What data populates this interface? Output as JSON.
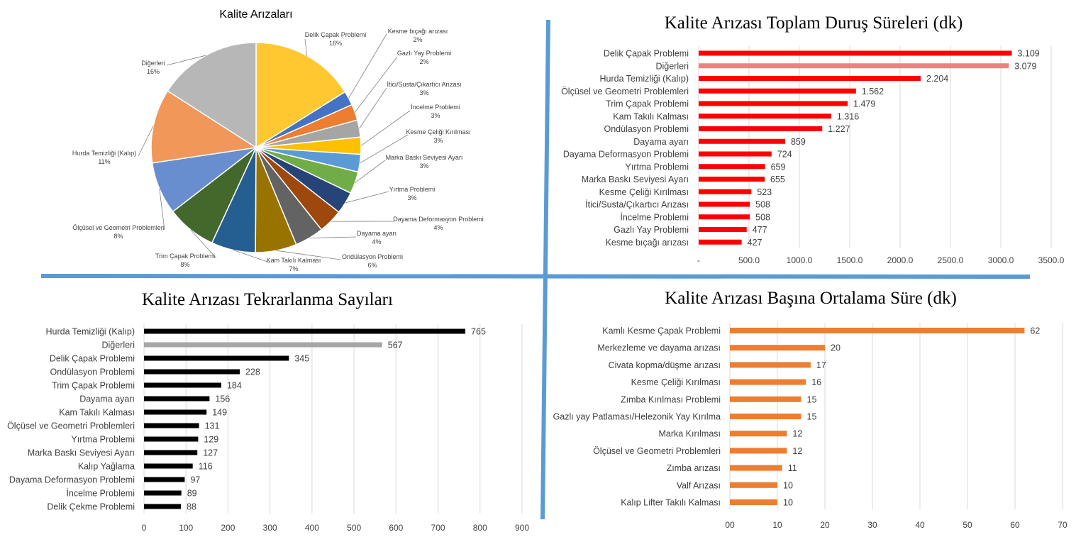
{
  "chart_data": [
    {
      "type": "pie",
      "title": "Kalite Arızaları",
      "categories": [
        "Delik Çapak Problemi",
        "Kesme bıçağı arızası",
        "Gazlı Yay Problemi",
        "İtici/Susta/Çıkartıcı Arızası",
        "İncelme Problemi",
        "Kesme Çeliği Kırılması",
        "Marka Baskı Seviyesi Ayarı",
        "Yırtma Problemi",
        "Dayama Deformasyon Problemi",
        "Dayama ayarı",
        "Ondülasyon Problemi",
        "Kam Takılı Kalması",
        "Trim Çapak Problemi",
        "Ölçüsel ve Geometri Problemleri",
        "Hurda Temizliği (Kalıp)",
        "Diğerleri"
      ],
      "percent_labels": [
        "16%",
        "2%",
        "2%",
        "3%",
        "3%",
        "3%",
        "3%",
        "3%",
        "4%",
        "4%",
        "6%",
        "7%",
        "8%",
        "8%",
        "11%",
        "16%"
      ],
      "values": [
        3109,
        427,
        477,
        508,
        508,
        523,
        655,
        659,
        724,
        859,
        1227,
        1316,
        1479,
        1562,
        2204,
        3079
      ],
      "colors": [
        "#ffc830",
        "#4472c4",
        "#ed7d31",
        "#a5a5a5",
        "#ffc000",
        "#5b9bd5",
        "#70ad47",
        "#264478",
        "#9e480e",
        "#636363",
        "#997300",
        "#255e91",
        "#43682b",
        "#698ed0",
        "#f1975a",
        "#b7b7b7"
      ]
    },
    {
      "type": "bar",
      "orientation": "horizontal",
      "title": "Kalite Arızası Toplam Duruş Süreleri (dk)",
      "categories": [
        "Delik Çapak Problemi",
        "Diğerleri",
        "Hurda Temizliği (Kalıp)",
        "Ölçüsel ve Geometri Problemleri",
        "Trim Çapak Problemi",
        "Kam Takılı Kalması",
        "Ondülasyon Problemi",
        "Dayama ayarı",
        "Dayama Deformasyon Problemi",
        "Yırtma Problemi",
        "Marka Baskı Seviyesi Ayarı",
        "Kesme Çeliği Kırılması",
        "İtici/Susta/Çıkartıcı Arızası",
        "İncelme Problemi",
        "Gazlı Yay Problemi",
        "Kesme bıçağı arızası"
      ],
      "values": [
        3109,
        3079,
        2204,
        1562,
        1479,
        1316,
        1227,
        859,
        724,
        659,
        655,
        523,
        508,
        508,
        477,
        427
      ],
      "value_labels": [
        "3.109",
        "3.079",
        "2.204",
        "1.562",
        "1.479",
        "1.316",
        "1.227",
        "859",
        "724",
        "659",
        "655",
        "523",
        "508",
        "508",
        "477",
        "427"
      ],
      "xlim": [
        0,
        3500
      ],
      "xticks": [
        "-",
        "500.0",
        "1000.0",
        "1500.0",
        "2000.0",
        "2500.0",
        "3000.0",
        "3500.0"
      ],
      "bar_color": "#ff0000",
      "highlight": {
        "index": 1,
        "color": "#f08080"
      }
    },
    {
      "type": "bar",
      "orientation": "horizontal",
      "title": "Kalite Arızası Tekrarlanma Sayıları",
      "categories": [
        "Hurda Temizliği (Kalıp)",
        "Diğerleri",
        "Delik Çapak Problemi",
        "Ondülasyon Problemi",
        "Trim Çapak Problemi",
        "Dayama ayarı",
        "Kam Takılı Kalması",
        "Ölçüsel ve Geometri Problemleri",
        "Yırtma Problemi",
        "Marka Baskı Seviyesi Ayarı",
        "Kalıp Yağlama",
        "Dayama Deformasyon Problemi",
        "İncelme Problemi",
        "Delik Çekme Problemi"
      ],
      "values": [
        765,
        567,
        345,
        228,
        184,
        156,
        149,
        131,
        129,
        127,
        116,
        97,
        89,
        88
      ],
      "value_labels": [
        "765",
        "567",
        "345",
        "228",
        "184",
        "156",
        "149",
        "131",
        "129",
        "127",
        "116",
        "97",
        "89",
        "88"
      ],
      "xlim": [
        0,
        900
      ],
      "xticks": [
        "0",
        "100",
        "200",
        "300",
        "400",
        "500",
        "600",
        "700",
        "800",
        "900"
      ],
      "bar_color": "#000000",
      "highlight": {
        "index": 1,
        "color": "#a6a6a6"
      }
    },
    {
      "type": "bar",
      "orientation": "horizontal",
      "title": "Kalite Arızası Başına Ortalama Süre (dk)",
      "categories": [
        "Kamlı Kesme Çapak Problemi",
        "Merkezleme ve dayama arızası",
        "Civata kopma/düşme arızası",
        "Kesme Çeliği Kırılması",
        "Zımba Kırılması Problemi",
        "Gazlı yay Patlaması/Helezonik Yay Kırılma",
        "Marka Kırılması",
        "Ölçüsel ve Geometri Problemleri",
        "Zımba arızası",
        "Valf Arızası",
        "Kalıp Lifter Takılı Kalması"
      ],
      "values": [
        62,
        20,
        17,
        16,
        15,
        15,
        12,
        12,
        11,
        10,
        10
      ],
      "value_labels": [
        "62",
        "20",
        "17",
        "16",
        "15",
        "15",
        "12",
        "12",
        "11",
        "10",
        "10"
      ],
      "xlim": [
        0,
        70
      ],
      "xticks": [
        "00",
        "10",
        "20",
        "30",
        "40",
        "50",
        "60",
        "70"
      ],
      "bar_color": "#ed7d31",
      "highlight": null
    }
  ],
  "divider_color": "#5b9bd5"
}
